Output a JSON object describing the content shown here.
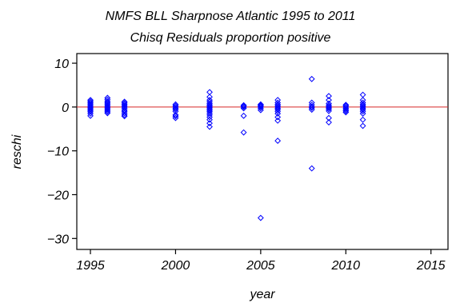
{
  "chart_data": {
    "type": "scatter",
    "title": "NMFS BLL Sharpnose Atlantic 1995 to 2011",
    "subtitle": "Chisq Residuals proportion positive",
    "xlabel": "year",
    "ylabel": "reschi",
    "xlim": [
      1994.2,
      2016.0
    ],
    "ylim": [
      -32.5,
      12.2
    ],
    "xticks": [
      1995,
      2000,
      2005,
      2010,
      2015
    ],
    "xtick_labels": [
      "1995",
      "2000",
      "2005",
      "2010",
      "2015"
    ],
    "yticks": [
      10,
      0,
      -10,
      -20,
      -30
    ],
    "ytick_labels": [
      "10",
      "0",
      "−10",
      "−20",
      "−30"
    ],
    "reference_line": {
      "y": 0,
      "color": "#d62728"
    },
    "grid": false,
    "marker": "diamond",
    "point_color": "#0000ff",
    "series": [
      {
        "x": [
          1995,
          1995,
          1995,
          1995,
          1995,
          1995,
          1995,
          1995,
          1995,
          1995,
          1995,
          1995,
          1996,
          1996,
          1996,
          1996,
          1996,
          1996,
          1996,
          1996,
          1996,
          1996,
          1996,
          1996,
          1997,
          1997,
          1997,
          1997,
          1997,
          1997,
          1997,
          1997,
          1997,
          1997,
          1997,
          2000,
          2000,
          2000,
          2000,
          2000,
          2000,
          2000,
          2000,
          2000,
          2002,
          2002,
          2002,
          2002,
          2002,
          2002,
          2002,
          2002,
          2002,
          2002,
          2002,
          2002,
          2002,
          2002,
          2002,
          2002,
          2002,
          2004,
          2004,
          2004,
          2004,
          2004,
          2004,
          2005,
          2005,
          2005,
          2005,
          2005,
          2005,
          2005,
          2006,
          2006,
          2006,
          2006,
          2006,
          2006,
          2006,
          2006,
          2006,
          2006,
          2006,
          2006,
          2008,
          2008,
          2008,
          2008,
          2008,
          2008,
          2008,
          2009,
          2009,
          2009,
          2009,
          2009,
          2009,
          2009,
          2009,
          2009,
          2009,
          2010,
          2010,
          2010,
          2010,
          2010,
          2010,
          2010,
          2011,
          2011,
          2011,
          2011,
          2011,
          2011,
          2011,
          2011,
          2011,
          2011,
          2011,
          2011
        ],
        "y": [
          1.6,
          1.3,
          1.0,
          0.7,
          0.4,
          0.1,
          -0.2,
          -0.5,
          -0.8,
          -1.1,
          -1.5,
          -2.0,
          2.1,
          1.7,
          1.3,
          1.0,
          0.7,
          0.4,
          0.1,
          -0.2,
          -0.5,
          -0.8,
          -1.1,
          -1.4,
          1.2,
          0.9,
          0.6,
          0.3,
          0.0,
          -0.3,
          -0.7,
          -1.0,
          -1.4,
          -1.8,
          -2.1,
          0.6,
          0.3,
          0.0,
          -0.3,
          -0.6,
          -1.0,
          -1.8,
          -2.1,
          -2.5,
          3.4,
          2.3,
          1.6,
          1.2,
          0.8,
          0.5,
          0.2,
          -0.1,
          -0.4,
          -0.7,
          -1.0,
          -1.4,
          -1.8,
          -2.3,
          -2.9,
          -3.7,
          -4.5,
          0.4,
          0.2,
          0.0,
          -0.3,
          -2.0,
          -5.8,
          0.6,
          0.4,
          0.2,
          0.0,
          -0.3,
          -0.7,
          -25.3,
          1.6,
          1.0,
          0.6,
          0.3,
          0.0,
          -0.3,
          -0.6,
          -1.0,
          -1.5,
          -2.3,
          -3.1,
          -7.7,
          6.4,
          1.0,
          0.5,
          0.1,
          -0.2,
          -0.6,
          -14.0,
          2.5,
          1.6,
          0.8,
          0.4,
          0.1,
          -0.2,
          -0.5,
          -0.9,
          -2.5,
          -3.5,
          0.5,
          0.3,
          0.0,
          -0.3,
          -0.6,
          -0.9,
          -1.2,
          2.8,
          1.6,
          1.0,
          0.6,
          0.3,
          0.0,
          -0.3,
          -0.6,
          -1.0,
          -1.5,
          -2.9,
          -4.3
        ]
      }
    ]
  }
}
